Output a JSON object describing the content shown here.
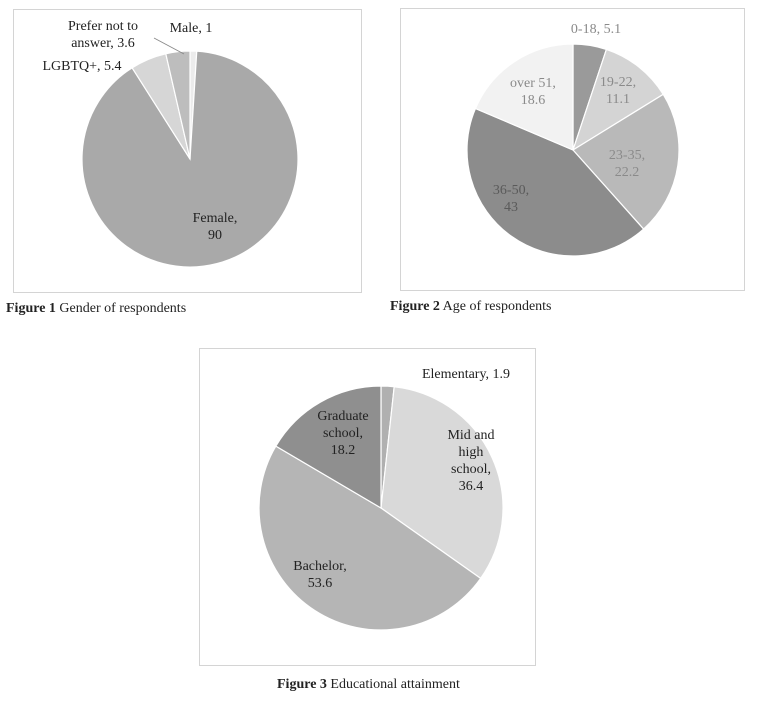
{
  "chart_data": [
    {
      "type": "pie",
      "title": "",
      "colors": [
        "#9e9e9e",
        "#c4c4c4",
        "#dedede",
        "#eeeeee",
        "#f7f7f7"
      ],
      "slices": [
        {
          "label": "Female",
          "value": 90,
          "text_lines": [
            "Female,",
            "90"
          ],
          "color": "#a9a9a9",
          "label_color": "#222222"
        },
        {
          "label": "LGBTQ+",
          "value": 5.4,
          "text_lines": [
            "LGBTQ+, 5.4"
          ],
          "color": "#d6d6d6",
          "label_color": "#222222"
        },
        {
          "label": "Prefer not to answer",
          "value": 3.6,
          "text_lines": [
            "Prefer not to",
            "answer, 3.6"
          ],
          "color": "#bdbdbd",
          "label_color": "#222222"
        },
        {
          "label": "Male",
          "value": 1,
          "text_lines": [
            "Male, 1"
          ],
          "color": "#ececec",
          "label_color": "#222222"
        }
      ],
      "caption_bold": "Figure 1",
      "caption_text": " Gender of respondents"
    },
    {
      "type": "pie",
      "title": "",
      "slices": [
        {
          "label": "0-18",
          "value": 5.1,
          "text_lines": [
            "0-18, 5.1"
          ],
          "color": "#9a9a9a",
          "label_color": "#8a8a8a"
        },
        {
          "label": "19-22",
          "value": 11.1,
          "text_lines": [
            "19-22,",
            "11.1"
          ],
          "color": "#d4d4d4",
          "label_color": "#8a8a8a"
        },
        {
          "label": "23-35",
          "value": 22.2,
          "text_lines": [
            "23-35,",
            "22.2"
          ],
          "color": "#b9b9b9",
          "label_color": "#8a8a8a"
        },
        {
          "label": "36-50",
          "value": 43,
          "text_lines": [
            "36-50,",
            "43"
          ],
          "color": "#8c8c8c",
          "label_color": "#5a5a5a"
        },
        {
          "label": "over 51",
          "value": 18.6,
          "text_lines": [
            "over 51,",
            "18.6"
          ],
          "color": "#f2f2f2",
          "label_color": "#8a8a8a"
        }
      ],
      "caption_bold": "Figure 2",
      "caption_text": " Age of respondents"
    },
    {
      "type": "pie",
      "title": "",
      "slices": [
        {
          "label": "Elementary",
          "value": 1.9,
          "text_lines": [
            "Elementary, 1.9"
          ],
          "color": "#b0b0b0",
          "label_color": "#222222"
        },
        {
          "label": "Mid and high school",
          "value": 36.4,
          "text_lines": [
            "Mid and",
            "high",
            "school,",
            "36.4"
          ],
          "color": "#d9d9d9",
          "label_color": "#222222"
        },
        {
          "label": "Bachelor",
          "value": 53.6,
          "text_lines": [
            "Bachelor,",
            "53.6"
          ],
          "color": "#b5b5b5",
          "label_color": "#222222"
        },
        {
          "label": "Graduate school",
          "value": 18.2,
          "text_lines": [
            "Graduate",
            "school,",
            "18.2"
          ],
          "color": "#8f8f8f",
          "label_color": "#222222"
        }
      ],
      "caption_bold": "Figure 3",
      "caption_text": " Educational attainment"
    }
  ]
}
